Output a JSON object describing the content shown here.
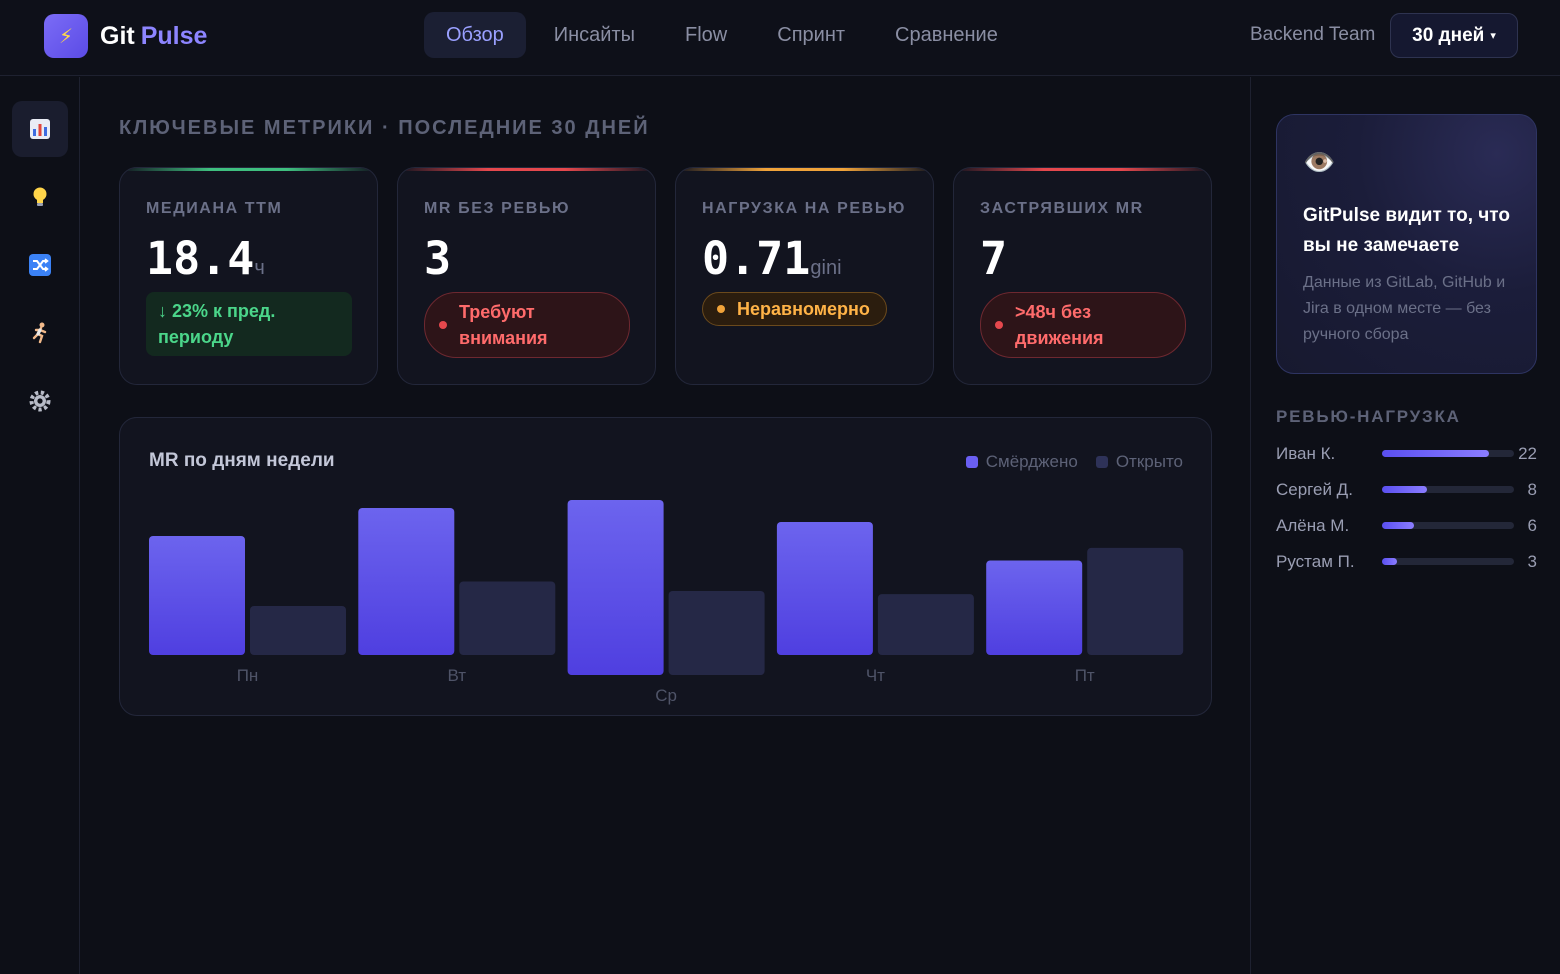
{
  "header": {
    "logo_icon": "⚡",
    "logo_word1": "Git",
    "logo_word2": "Pulse",
    "nav": [
      {
        "label": "Обзор",
        "active": true
      },
      {
        "label": "Инсайты",
        "active": false
      },
      {
        "label": "Flow",
        "active": false
      },
      {
        "label": "Спринт",
        "active": false
      },
      {
        "label": "Сравнение",
        "active": false
      }
    ],
    "team": "Backend Team",
    "period": "30 дней",
    "period_caret": "▾"
  },
  "sidebar": {
    "items": [
      {
        "name": "bar-chart-icon",
        "active": true
      },
      {
        "name": "lightbulb-icon",
        "active": false
      },
      {
        "name": "shuffle-icon",
        "active": false
      },
      {
        "name": "runner-icon",
        "active": false
      },
      {
        "name": "gear-icon",
        "active": false
      }
    ]
  },
  "main": {
    "section_title": "КЛЮЧЕВЫЕ МЕТРИКИ · ПОСЛЕДНИЕ 30 ДНЕЙ",
    "cards": [
      {
        "label": "МЕДИАНА TTM",
        "value": "18.4",
        "unit": "ч",
        "badge": "↓ 23% к пред. периоду",
        "badge_type": "green",
        "accent": "#3fbf7f"
      },
      {
        "label": "MR БЕЗ РЕВЬЮ",
        "value": "3",
        "unit": "",
        "badge": "Требуют внимания",
        "badge_type": "red",
        "accent": "#e5484d"
      },
      {
        "label": "НАГРУЗКА НА РЕВЬЮ",
        "value": "0.71",
        "unit": "gini",
        "badge": "Неравномерно",
        "badge_type": "orange",
        "accent": "#f0a33a"
      },
      {
        "label": "ЗАСТРЯВШИХ MR",
        "value": "7",
        "unit": "",
        "badge": ">48ч без движения",
        "badge_type": "red",
        "accent": "#e5484d"
      }
    ]
  },
  "chart_data": {
    "type": "bar",
    "title": "MR по дням недели",
    "categories": [
      "Пн",
      "Вт",
      "Ср",
      "Чт",
      "Пт"
    ],
    "series": [
      {
        "name": "Смёрджено",
        "values": [
          17,
          21,
          25,
          19,
          13.5
        ],
        "color": "#6a5ff2"
      },
      {
        "name": "Открыто",
        "values": [
          7,
          10.5,
          12,
          8.7,
          15.3
        ],
        "color": "#252846"
      }
    ],
    "legend_position": "top-right",
    "grid": false
  },
  "right": {
    "promo_icon": "👁️",
    "promo_title": "GitPulse видит то, что вы не замечаете",
    "promo_text": "Данные из GitLab, GitHub и Jira в одном месте — без ручного сбора",
    "review_title": "РЕВЬЮ-НАГРУЗКА",
    "reviewers": [
      {
        "name": "Иван К.",
        "count": "22",
        "share": 0.81
      },
      {
        "name": "Сергей Д.",
        "count": "8",
        "share": 0.34
      },
      {
        "name": "Алёна М.",
        "count": "6",
        "share": 0.24
      },
      {
        "name": "Рустам П.",
        "count": "3",
        "share": 0.11
      }
    ]
  }
}
